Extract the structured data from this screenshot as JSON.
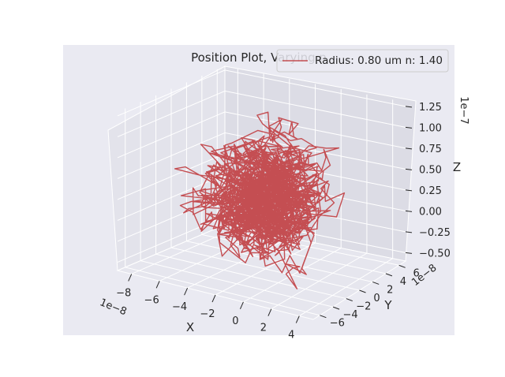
{
  "chart_data": {
    "type": "line3d",
    "title": "Position Plot, Varying n",
    "legend": {
      "placement": "top-right",
      "entries": [
        {
          "label": "Radius: 0.80 um n: 1.40",
          "color": "#c44e52"
        }
      ]
    },
    "grid": true,
    "x_axis": {
      "label": "X",
      "multiplier": "1e−8",
      "range": [
        -9,
        5
      ],
      "ticks": [
        "−8",
        "−6",
        "−4",
        "−2",
        "0",
        "2",
        "4"
      ]
    },
    "y_axis": {
      "label": "Y",
      "multiplier": "1e−8",
      "range": [
        -7,
        7
      ],
      "ticks": [
        "−6",
        "−4",
        "−2",
        "0",
        "2",
        "4",
        "6"
      ]
    },
    "z_axis": {
      "label": "Z",
      "multiplier": "1e−7",
      "range": [
        -0.6,
        1.3
      ],
      "ticks": [
        "−0.50",
        "−0.25",
        "0.00",
        "0.25",
        "0.50",
        "0.75",
        "1.00",
        "1.25"
      ]
    },
    "series": [
      {
        "color": "#c44e52",
        "description": "dense random-walk trajectory centred near the origin",
        "center": {
          "x": -2e-08,
          "y": 0.0,
          "z": 2e-08
        },
        "spread": {
          "x": 2.5e-08,
          "y": 2.5e-08,
          "z": 4e-08
        }
      }
    ]
  }
}
